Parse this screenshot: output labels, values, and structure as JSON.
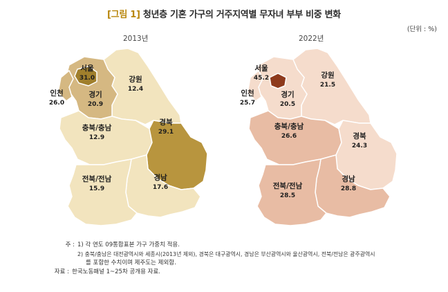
{
  "title": {
    "bracket": "[그림 1]",
    "text": "청년층 기혼 가구의 거주지역별 무자녀 부부 비중 변화"
  },
  "unit": "(단위 : %)",
  "maps": [
    {
      "year": "2013년",
      "colors": {
        "low": "#f2e4be",
        "mid": "#d5b882",
        "high": "#b8953e",
        "dark": "#a07f2c",
        "stroke": "#ffffff"
      },
      "regions": [
        {
          "name": "서울",
          "value": "31.0"
        },
        {
          "name": "인천",
          "value": "26.0"
        },
        {
          "name": "경기",
          "value": "20.9"
        },
        {
          "name": "강원",
          "value": "12.4"
        },
        {
          "name": "충북/충남",
          "value": "12.9"
        },
        {
          "name": "경북",
          "value": "29.1"
        },
        {
          "name": "전북/전남",
          "value": "15.9"
        },
        {
          "name": "경남",
          "value": "17.6"
        }
      ]
    },
    {
      "year": "2022년",
      "colors": {
        "low": "#f5dccc",
        "mid": "#e8bca4",
        "high": "#d29576",
        "dark": "#8e3a1c",
        "stroke": "#ffffff"
      },
      "regions": [
        {
          "name": "서울",
          "value": "45.2"
        },
        {
          "name": "인천",
          "value": "25.7"
        },
        {
          "name": "경기",
          "value": "20.5"
        },
        {
          "name": "강원",
          "value": "21.5"
        },
        {
          "name": "충북/충남",
          "value": "26.6"
        },
        {
          "name": "경북",
          "value": "24.3"
        },
        {
          "name": "전북/전남",
          "value": "28.5"
        },
        {
          "name": "경남",
          "value": "28.8"
        }
      ]
    }
  ],
  "notes": [
    {
      "label": "주 :",
      "text": "1) 각 연도 09통합표본 가구 가중치 적용."
    },
    {
      "label": "",
      "text": "2) 충북/충남은 대전광역시와 세종시(2013년 제외), 경북은 대구광역시, 경남은 부산광역시와 울산광역시, 전북/전남은 광주광역시"
    },
    {
      "label": "",
      "text": "를 포함한 수치이며 제주도는 제외함."
    },
    {
      "label": "자료 :",
      "text": "한국노동패널 1~25차 공개용 자료."
    }
  ]
}
